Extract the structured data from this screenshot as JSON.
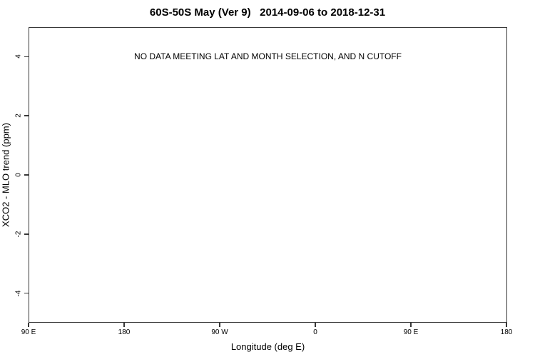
{
  "chart_data": {
    "type": "scatter",
    "title": "60S-50S May (Ver 9)   2014-09-06 to 2018-12-31",
    "annotation": "NO DATA MEETING LAT AND MONTH SELECTION, AND N CUTOFF",
    "xlabel": "Longitude (deg E)",
    "ylabel": "XCO2 - MLO trend (ppm)",
    "x_tick_labels": [
      "90 E",
      "180",
      "90 W",
      "0",
      "90 E",
      "180"
    ],
    "y_ticks": [
      4,
      2,
      0,
      -2,
      -4
    ],
    "y_tick_labels": [
      "4",
      "2",
      "0",
      "-2",
      "-4"
    ],
    "ylim": [
      -5,
      5
    ],
    "series": [],
    "grid": false,
    "legend": "none",
    "colors": {
      "axis": "#383838",
      "text": "#000000",
      "background": "#ffffff"
    }
  }
}
